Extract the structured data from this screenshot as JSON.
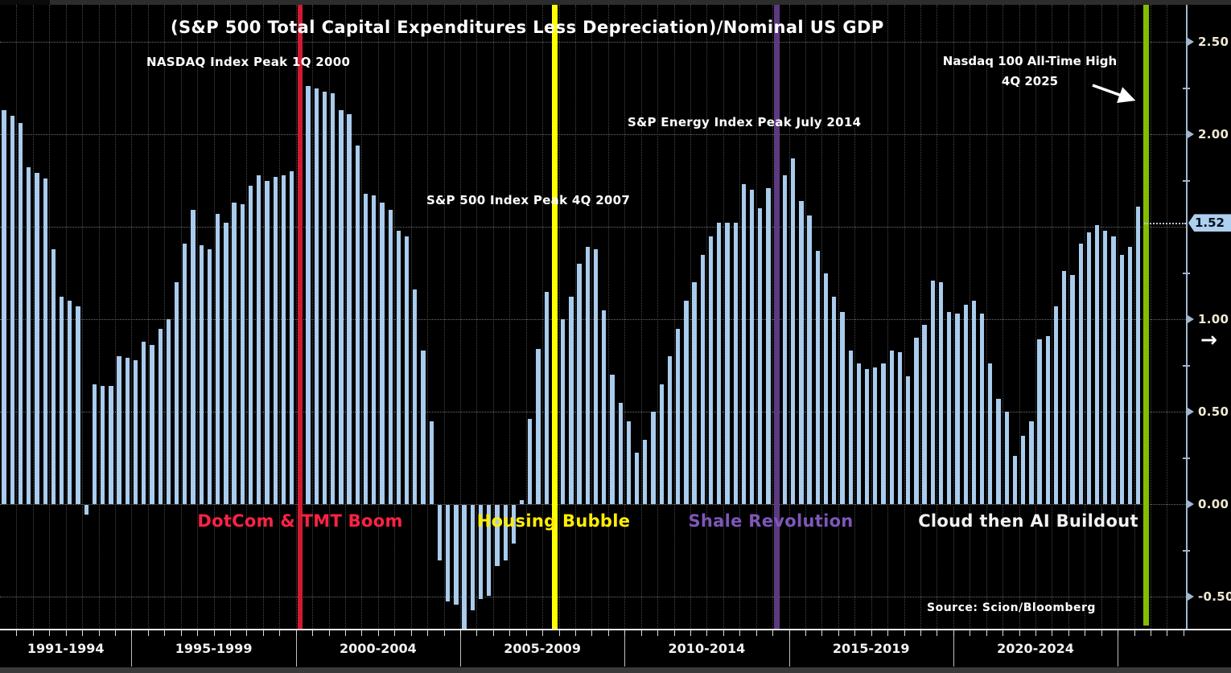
{
  "title": "(S&P 500 Total Capital Expenditures Less Depreciation)/Nominal US GDP",
  "source": "Source:  Scion/Bloomberg",
  "annotations": {
    "nasdaq_peak": "NASDAQ Index Peak 1Q 2000",
    "sp500_peak": "S&P 500 Index Peak 4Q 2007",
    "energy_peak": "S&P Energy Index Peak July 2014",
    "nasdaq_ath_line1": "Nasdaq 100 All-Time High",
    "nasdaq_ath_line2": "4Q 2025"
  },
  "icons": {
    "last_price_arrow": "→"
  },
  "colors": {
    "background": "#000000",
    "bar": "#a9cbec",
    "last_bar": "#d8eafb",
    "axis": "#9fb6d0",
    "tick_text": "#f1e9d2",
    "badge_bg": "#aed0ef",
    "red_line": "#d01a32",
    "yellow_line": "#ffff00",
    "purple_line": "#5d3a80",
    "green_line": "#84bd00"
  },
  "eras": [
    {
      "label": "DotCom & TMT Boom",
      "color": "#ff2244"
    },
    {
      "label": "Housing Bubble",
      "color": "#ffee00"
    },
    {
      "label": "Shale Revolution",
      "color": "#7e57b8"
    },
    {
      "label": "Cloud then AI Buildout",
      "color": "#f2f2f2"
    }
  ],
  "chart_data": {
    "type": "bar",
    "title": "(S&P 500 Total Capital Expenditures Less Depreciation)/Nominal US GDP",
    "x_start": "1991 Q1",
    "x_end": "2025 Q4",
    "frequency": "quarterly",
    "ylim": [
      -0.67,
      2.7
    ],
    "grid": true,
    "values": [
      2.13,
      2.1,
      2.06,
      1.82,
      1.79,
      1.76,
      1.38,
      1.12,
      1.1,
      1.07,
      -0.05,
      0.65,
      0.64,
      0.64,
      0.8,
      0.79,
      0.78,
      0.88,
      0.86,
      0.95,
      1.0,
      1.2,
      1.41,
      1.59,
      1.4,
      1.38,
      1.57,
      1.52,
      1.63,
      1.62,
      1.72,
      1.78,
      1.75,
      1.77,
      1.78,
      1.8,
      2.33,
      2.26,
      2.25,
      2.23,
      2.22,
      2.13,
      2.11,
      1.94,
      1.68,
      1.67,
      1.63,
      1.59,
      1.48,
      1.45,
      1.16,
      0.83,
      0.45,
      -0.3,
      -0.52,
      -0.54,
      -0.67,
      -0.57,
      -0.51,
      -0.49,
      -0.33,
      -0.3,
      -0.21,
      0.02,
      0.46,
      0.84,
      1.15,
      1.2,
      1.0,
      1.12,
      1.3,
      1.39,
      1.38,
      1.05,
      0.7,
      0.55,
      0.45,
      0.28,
      0.35,
      0.5,
      0.65,
      0.8,
      0.95,
      1.1,
      1.2,
      1.35,
      1.45,
      1.52,
      1.52,
      1.52,
      1.73,
      1.7,
      1.6,
      1.71,
      1.64,
      1.78,
      1.87,
      1.64,
      1.56,
      1.37,
      1.25,
      1.12,
      1.04,
      0.83,
      0.76,
      0.73,
      0.74,
      0.76,
      0.83,
      0.82,
      0.69,
      0.9,
      0.97,
      1.21,
      1.2,
      1.04,
      1.03,
      1.08,
      1.1,
      1.03,
      0.76,
      0.57,
      0.5,
      0.26,
      0.37,
      0.45,
      0.89,
      0.91,
      1.07,
      1.26,
      1.24,
      1.41,
      1.47,
      1.51,
      1.48,
      1.45,
      1.35,
      1.39,
      1.61,
      1.52
    ],
    "event_lines": [
      {
        "label": "NASDAQ Index Peak 1Q 2000",
        "quarter": "2000 Q1",
        "index": 36,
        "color": "#d01a32",
        "width": 6
      },
      {
        "label": "S&P 500 Index Peak 4Q 2007",
        "quarter": "2007 Q4",
        "index": 67,
        "color": "#ffff00",
        "width": 7
      },
      {
        "label": "S&P Energy Index Peak July 2014",
        "quarter": "2014 Q3",
        "index": 94,
        "color": "#5d3a80",
        "width": 7
      },
      {
        "label": "Nasdaq 100 All-Time High 4Q 2025",
        "quarter": "2025 Q4",
        "index": 139,
        "color": "#84bd00",
        "width": 7
      }
    ],
    "y_axis": {
      "labeled_ticks": [
        {
          "label": "2.50",
          "value": 2.5
        },
        {
          "label": "2.00",
          "value": 2.0
        },
        {
          "label": "1.00",
          "value": 1.0
        },
        {
          "label": "0.50",
          "value": 0.5
        },
        {
          "label": "0.00",
          "value": 0.0
        },
        {
          "label": "-0.50",
          "value": -0.5
        }
      ],
      "minor_ticks": [
        2.25,
        1.75,
        1.25,
        0.75,
        0.25,
        -0.25
      ],
      "gridline_values": [
        2.5,
        2.0,
        1.5,
        1.0,
        0.5,
        0.0,
        -0.5
      ],
      "last_price": {
        "label": "1.52",
        "value": 1.52
      }
    },
    "x_axis": {
      "sections": [
        {
          "label": "1991-1994",
          "start_index": 0,
          "end_index": 15
        },
        {
          "label": "1995-1999",
          "start_index": 16,
          "end_index": 35
        },
        {
          "label": "2000-2004",
          "start_index": 36,
          "end_index": 55
        },
        {
          "label": "2005-2009",
          "start_index": 56,
          "end_index": 75
        },
        {
          "label": "2010-2014",
          "start_index": 76,
          "end_index": 95
        },
        {
          "label": "2015-2019",
          "start_index": 96,
          "end_index": 115
        },
        {
          "label": "2020-2024",
          "start_index": 116,
          "end_index": 135
        },
        {
          "label": "",
          "start_index": 136,
          "end_index": 139
        }
      ]
    }
  }
}
